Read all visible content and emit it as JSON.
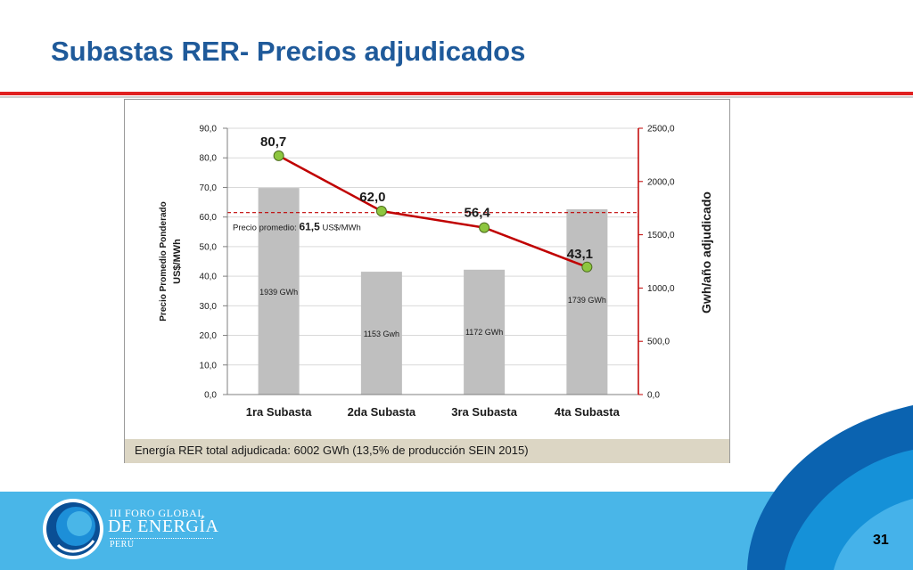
{
  "slide": {
    "title": "Subastas RER- Precios adjudicados",
    "page_number": "31"
  },
  "footer": {
    "brand_line1": "III FORO GLOBAL",
    "brand_line2": "DE ENERGÍA",
    "brand_line3": "PERÚ"
  },
  "chart_data": {
    "type": "bar",
    "categories": [
      "1ra Subasta",
      "2da Subasta",
      "3ra Subasta",
      "4ta Subasta"
    ],
    "series": [
      {
        "type": "bar",
        "axis": "right",
        "values": [
          1939,
          1153,
          1172,
          1739
        ],
        "value_labels": [
          "1939 GWh",
          "1153 Gwh",
          "1172 GWh",
          "1739 GWh"
        ],
        "color": "#bfbfbf"
      },
      {
        "type": "line",
        "axis": "left",
        "values": [
          80.7,
          62.0,
          56.4,
          43.1
        ],
        "value_labels": [
          "80,7",
          "62,0",
          "56,4",
          "43,1"
        ],
        "color": "#c00000",
        "marker_color": "#8dc63f"
      }
    ],
    "ylabel": [
      "Precio Promedio Ponderado",
      "US$/MWh"
    ],
    "y2label": "Gwh/año adjudicado",
    "ylim": [
      0,
      90
    ],
    "y2lim": [
      0,
      2500
    ],
    "yticks": [
      "0,0",
      "10,0",
      "20,0",
      "30,0",
      "40,0",
      "50,0",
      "60,0",
      "70,0",
      "80,0",
      "90,0"
    ],
    "y2ticks": [
      "0,0",
      "500,0",
      "1000,0",
      "1500,0",
      "2000,0",
      "2500,0"
    ],
    "reference_line": {
      "value": 61.5,
      "label_prefix": "Precio promedio:",
      "label_value": "61,5",
      "label_unit": "US$/MWh",
      "color": "#c00000",
      "style": "dashed"
    },
    "grid": true,
    "footnote": "Energía RER total adjudicada:  6002 GWh (13,5% de producción SEIN 2015)"
  },
  "colors": {
    "title": "#1f5a9a",
    "accent_rule": "#e02020",
    "footer_band": "#49b6e8",
    "footer_arc": "#0b5fa8"
  }
}
